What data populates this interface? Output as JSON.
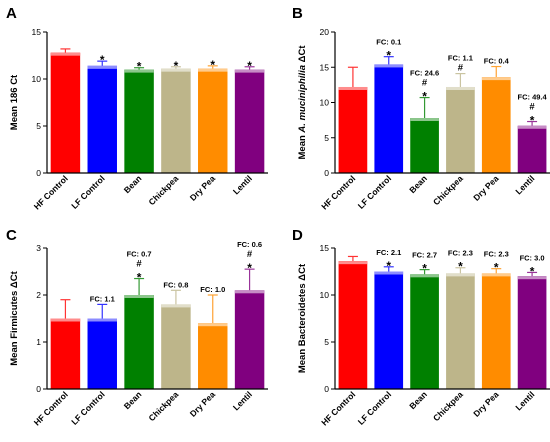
{
  "chart_data": [
    {
      "panel": "A",
      "type": "bar",
      "ylabel": "Mean 186 Ct",
      "ylim": [
        0,
        15
      ],
      "yticks": [
        0,
        5,
        10,
        15
      ],
      "categories": [
        "HF Control",
        "LF Control",
        "Bean",
        "Chickpea",
        "Dry Pea",
        "Lentil"
      ],
      "values": [
        12.8,
        11.4,
        11.0,
        11.1,
        11.1,
        11.0
      ],
      "errors": [
        0.4,
        0.5,
        0.2,
        0.2,
        0.3,
        0.3
      ],
      "annotations": [
        "",
        "*",
        "*",
        "*",
        "*",
        "*"
      ],
      "fc_labels": [
        "",
        "",
        "",
        "",
        "",
        ""
      ]
    },
    {
      "panel": "B",
      "type": "bar",
      "ylabel_prefix": "Mean",
      "ylabel_italic": "A. muciniphilia",
      "ylabel_suffix": "ΔCt",
      "ylim": [
        0,
        20
      ],
      "yticks": [
        0,
        5,
        10,
        15,
        20
      ],
      "categories": [
        "HF Control",
        "LF Control",
        "Bean",
        "Chickpea",
        "Dry Pea",
        "Lentil"
      ],
      "values": [
        12.2,
        15.4,
        7.8,
        12.2,
        13.6,
        6.7
      ],
      "errors": [
        2.8,
        1.1,
        2.9,
        1.9,
        1.5,
        0.6
      ],
      "annotations": [
        "",
        "*",
        "#*",
        "#",
        "",
        "#*"
      ],
      "fc_labels": [
        "",
        "FC: 0.1",
        "FC: 24.6",
        "FC: 1.1",
        "FC: 0.4",
        "FC: 49.4"
      ]
    },
    {
      "panel": "C",
      "type": "bar",
      "ylabel_prefix": "Mean Firmicutes",
      "ylabel_suffix": "ΔCt",
      "ylim": [
        0,
        3
      ],
      "yticks": [
        0,
        1,
        2,
        3
      ],
      "categories": [
        "HF Control",
        "LF Control",
        "Bean",
        "Chickpea",
        "Dry Pea",
        "Lentil"
      ],
      "values": [
        1.5,
        1.5,
        2.0,
        1.8,
        1.4,
        2.1
      ],
      "errors": [
        0.4,
        0.3,
        0.35,
        0.3,
        0.6,
        0.45
      ],
      "annotations": [
        "",
        "",
        "#*",
        "",
        "",
        "#*"
      ],
      "fc_labels": [
        "",
        "FC: 1.1",
        "FC: 0.7",
        "FC: 0.8",
        "FC: 1.0",
        "FC: 0.6"
      ]
    },
    {
      "panel": "D",
      "type": "bar",
      "ylabel_prefix": "Mean Bacteroidetes",
      "ylabel_suffix": "ΔCt",
      "ylim": [
        0,
        15
      ],
      "yticks": [
        0,
        5,
        10,
        15
      ],
      "categories": [
        "HF Control",
        "LF Control",
        "Bean",
        "Chickpea",
        "Dry Pea",
        "Lentil"
      ],
      "values": [
        13.6,
        12.5,
        12.2,
        12.3,
        12.3,
        12.0
      ],
      "errors": [
        0.5,
        0.5,
        0.5,
        0.6,
        0.5,
        0.4
      ],
      "annotations": [
        "",
        "*",
        "*",
        "*",
        "*",
        "*"
      ],
      "fc_labels": [
        "",
        "FC: 2.1",
        "FC: 2.7",
        "FC: 2.3",
        "FC: 2.3",
        "FC: 3.0"
      ]
    }
  ],
  "colors": [
    "#ff0000",
    "#0000ff",
    "#008000",
    "#bdb58a",
    "#ff8c00",
    "#80007f"
  ]
}
